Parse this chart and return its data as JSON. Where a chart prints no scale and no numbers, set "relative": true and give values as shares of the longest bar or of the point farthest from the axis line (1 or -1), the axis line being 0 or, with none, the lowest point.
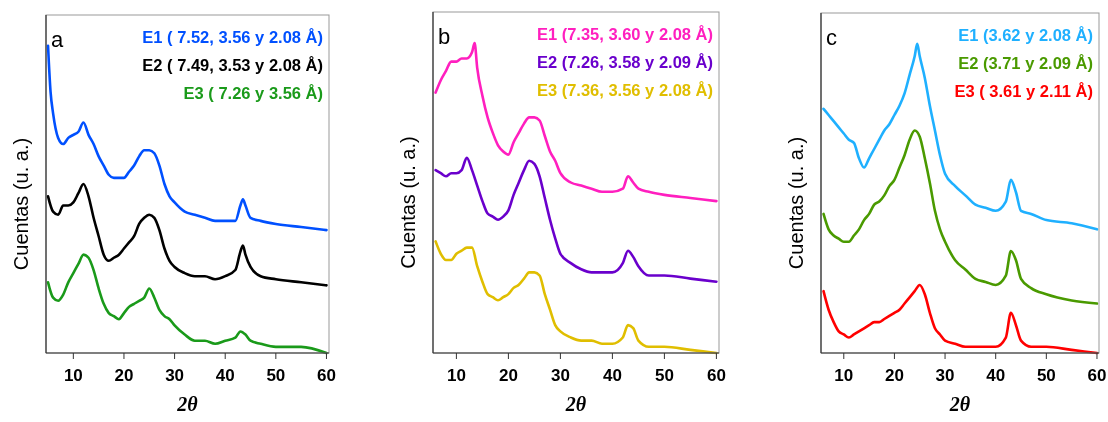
{
  "chart_data": [
    {
      "type": "line",
      "relative": true,
      "annotations": [
        "a"
      ],
      "xlabel": "2θ",
      "ylabel": "Cuentas (u. a.)",
      "xlim": [
        4.6,
        60.5
      ],
      "xticks": [
        10,
        20,
        30,
        40,
        50,
        60
      ],
      "tick_labels": "x",
      "legend": "top right",
      "grid": false,
      "series": [
        {
          "name": "E1 ( 7.52, 3.56 y 2.08 Å)",
          "color": "#0050ff",
          "x": [
            5,
            5.5,
            6,
            7,
            8,
            9,
            10,
            11,
            12,
            13,
            14,
            15,
            16,
            17,
            18,
            19,
            20,
            21,
            22,
            23,
            24,
            25,
            26,
            27,
            28,
            29,
            30,
            32,
            34,
            36,
            38,
            40,
            42,
            43,
            43.5,
            44,
            45,
            47,
            50,
            55,
            60
          ],
          "values": [
            1.0,
            0.85,
            0.78,
            0.7,
            0.68,
            0.7,
            0.71,
            0.72,
            0.75,
            0.71,
            0.68,
            0.64,
            0.61,
            0.58,
            0.57,
            0.57,
            0.57,
            0.59,
            0.61,
            0.64,
            0.66,
            0.66,
            0.65,
            0.61,
            0.55,
            0.51,
            0.49,
            0.46,
            0.45,
            0.44,
            0.43,
            0.43,
            0.43,
            0.48,
            0.5,
            0.48,
            0.44,
            0.43,
            0.42,
            0.41,
            0.4
          ]
        },
        {
          "name": "E2 ( 7.49, 3.53 y 2.08 Å)",
          "color": "#000000",
          "x": [
            5,
            6,
            7,
            8,
            9,
            10,
            11,
            12,
            13,
            14,
            15,
            16,
            17,
            18,
            19,
            20,
            21,
            22,
            23,
            24,
            25,
            26,
            27,
            28,
            29,
            30,
            32,
            34,
            36,
            38,
            40,
            42,
            43,
            43.5,
            44,
            45,
            47,
            50,
            55,
            60
          ],
          "values": [
            0.51,
            0.46,
            0.45,
            0.48,
            0.48,
            0.49,
            0.52,
            0.55,
            0.51,
            0.44,
            0.38,
            0.32,
            0.3,
            0.31,
            0.32,
            0.34,
            0.36,
            0.38,
            0.42,
            0.44,
            0.45,
            0.44,
            0.4,
            0.34,
            0.3,
            0.28,
            0.26,
            0.25,
            0.25,
            0.24,
            0.25,
            0.27,
            0.33,
            0.35,
            0.32,
            0.28,
            0.25,
            0.24,
            0.23,
            0.22
          ]
        },
        {
          "name": "E3 ( 7.26 y 3.56 Å)",
          "color": "#1a9a1a",
          "x": [
            5,
            6,
            7,
            8,
            9,
            10,
            11,
            12,
            13,
            14,
            15,
            16,
            17,
            18,
            19,
            20,
            21,
            22,
            23,
            24,
            25,
            26,
            27,
            28,
            29,
            30,
            32,
            34,
            36,
            38,
            40,
            42,
            43,
            44,
            45,
            47,
            50,
            55,
            60
          ],
          "values": [
            0.23,
            0.18,
            0.17,
            0.19,
            0.23,
            0.26,
            0.29,
            0.32,
            0.31,
            0.27,
            0.21,
            0.16,
            0.13,
            0.12,
            0.11,
            0.13,
            0.15,
            0.16,
            0.17,
            0.18,
            0.21,
            0.18,
            0.14,
            0.12,
            0.11,
            0.09,
            0.06,
            0.04,
            0.04,
            0.03,
            0.04,
            0.05,
            0.07,
            0.06,
            0.04,
            0.03,
            0.02,
            0.02,
            0
          ]
        }
      ]
    },
    {
      "type": "line",
      "relative": true,
      "annotations": [
        "b"
      ],
      "xlabel": "2θ",
      "ylabel": "Cuentas (u. a.)",
      "xlim": [
        5.5,
        60.5
      ],
      "xticks": [
        10,
        20,
        30,
        40,
        50,
        60
      ],
      "tick_labels": "x",
      "legend": "top right",
      "grid": false,
      "series": [
        {
          "name": "E1 (7.35, 3.60 y 2.08 Å)",
          "color": "#ff1fbf",
          "x": [
            6,
            7,
            8,
            9,
            10,
            11,
            12,
            13,
            13.5,
            14,
            15,
            16,
            17,
            18,
            19,
            20,
            21,
            22,
            23,
            24,
            25,
            26,
            27,
            28,
            29,
            30,
            32,
            34,
            36,
            38,
            40,
            42,
            43,
            44,
            45,
            47,
            50,
            55,
            60
          ],
          "values": [
            0.84,
            0.88,
            0.91,
            0.94,
            0.94,
            0.95,
            0.95,
            0.97,
            1.0,
            0.92,
            0.83,
            0.76,
            0.71,
            0.67,
            0.65,
            0.64,
            0.68,
            0.71,
            0.74,
            0.76,
            0.76,
            0.75,
            0.7,
            0.65,
            0.62,
            0.58,
            0.55,
            0.54,
            0.53,
            0.52,
            0.52,
            0.53,
            0.57,
            0.55,
            0.53,
            0.52,
            0.51,
            0.5,
            0.49
          ]
        },
        {
          "name": "E2 (7.26, 3.58 y 2.09 Å)",
          "color": "#6a00cc",
          "x": [
            6,
            7,
            8,
            9,
            10,
            11,
            12,
            13,
            14,
            15,
            16,
            17,
            18,
            19,
            20,
            21,
            22,
            23,
            24,
            25,
            26,
            27,
            28,
            29,
            30,
            32,
            34,
            36,
            38,
            40,
            42,
            43,
            44,
            45,
            47,
            50,
            55,
            60
          ],
          "values": [
            0.59,
            0.58,
            0.57,
            0.58,
            0.58,
            0.59,
            0.63,
            0.59,
            0.54,
            0.49,
            0.45,
            0.44,
            0.43,
            0.44,
            0.46,
            0.51,
            0.55,
            0.59,
            0.62,
            0.61,
            0.57,
            0.5,
            0.43,
            0.37,
            0.32,
            0.29,
            0.27,
            0.26,
            0.26,
            0.26,
            0.29,
            0.33,
            0.31,
            0.28,
            0.25,
            0.25,
            0.24,
            0.23
          ]
        },
        {
          "name": "E3 (7.36, 3.56 y 2.08 Å)",
          "color": "#e0be00",
          "x": [
            6,
            7,
            8,
            9,
            10,
            11,
            12,
            13,
            14,
            15,
            16,
            17,
            18,
            19,
            20,
            21,
            22,
            23,
            24,
            25,
            26,
            27,
            28,
            29,
            30,
            32,
            34,
            36,
            38,
            40,
            42,
            43,
            44,
            45,
            47,
            50,
            55,
            60
          ],
          "values": [
            0.36,
            0.32,
            0.3,
            0.3,
            0.32,
            0.33,
            0.34,
            0.34,
            0.28,
            0.23,
            0.19,
            0.18,
            0.17,
            0.18,
            0.19,
            0.21,
            0.22,
            0.24,
            0.26,
            0.26,
            0.25,
            0.19,
            0.14,
            0.09,
            0.07,
            0.05,
            0.04,
            0.04,
            0.03,
            0.03,
            0.05,
            0.09,
            0.08,
            0.04,
            0.02,
            0.02,
            0.01,
            0
          ]
        }
      ]
    },
    {
      "type": "line",
      "relative": true,
      "annotations": [
        "c"
      ],
      "xlabel": "2θ",
      "ylabel": "Cuentas (u. a.)",
      "xlim": [
        5.5,
        60.4
      ],
      "xticks": [
        10,
        20,
        30,
        40,
        50,
        60
      ],
      "tick_labels": "x",
      "legend": "top right",
      "grid": false,
      "series": [
        {
          "name": "E1 (3.62 y 2.08 Å)",
          "color": "#1fb0ff",
          "x": [
            6,
            7,
            8,
            9,
            10,
            11,
            12,
            13,
            14,
            15,
            16,
            17,
            18,
            19,
            20,
            21,
            22,
            23,
            24,
            24.5,
            25,
            26,
            27,
            28,
            29,
            30,
            32,
            34,
            36,
            38,
            40,
            42,
            43,
            44,
            45,
            47,
            50,
            55,
            60
          ],
          "values": [
            0.79,
            0.77,
            0.75,
            0.73,
            0.71,
            0.69,
            0.68,
            0.63,
            0.6,
            0.63,
            0.66,
            0.69,
            0.72,
            0.74,
            0.77,
            0.8,
            0.84,
            0.9,
            0.96,
            1.0,
            0.96,
            0.89,
            0.8,
            0.72,
            0.64,
            0.58,
            0.54,
            0.51,
            0.48,
            0.47,
            0.46,
            0.49,
            0.56,
            0.52,
            0.46,
            0.45,
            0.43,
            0.42,
            0.4
          ]
        },
        {
          "name": "E2 (3.71 y 2.09 Å)",
          "color": "#4a9a00",
          "x": [
            6,
            7,
            8,
            9,
            10,
            11,
            12,
            13,
            14,
            15,
            16,
            17,
            18,
            19,
            20,
            21,
            22,
            23,
            24,
            25,
            26,
            27,
            28,
            29,
            30,
            32,
            34,
            36,
            38,
            40,
            42,
            43,
            44,
            45,
            47,
            50,
            55,
            60
          ],
          "values": [
            0.45,
            0.4,
            0.38,
            0.37,
            0.36,
            0.36,
            0.38,
            0.4,
            0.43,
            0.45,
            0.48,
            0.49,
            0.51,
            0.54,
            0.56,
            0.6,
            0.64,
            0.69,
            0.72,
            0.7,
            0.63,
            0.55,
            0.46,
            0.4,
            0.36,
            0.3,
            0.27,
            0.24,
            0.23,
            0.22,
            0.25,
            0.33,
            0.3,
            0.24,
            0.21,
            0.19,
            0.17,
            0.16
          ]
        },
        {
          "name": "E3 ( 3.61 y 2.11 Å)",
          "color": "#ff0000",
          "x": [
            6,
            7,
            8,
            9,
            10,
            11,
            12,
            13,
            14,
            15,
            16,
            17,
            18,
            19,
            20,
            21,
            22,
            23,
            24,
            25,
            26,
            27,
            28,
            29,
            30,
            32,
            34,
            36,
            38,
            40,
            42,
            43,
            44,
            45,
            47,
            50,
            55,
            60
          ],
          "values": [
            0.2,
            0.14,
            0.1,
            0.07,
            0.06,
            0.05,
            0.06,
            0.07,
            0.08,
            0.09,
            0.1,
            0.1,
            0.11,
            0.12,
            0.13,
            0.14,
            0.16,
            0.18,
            0.2,
            0.22,
            0.19,
            0.13,
            0.08,
            0.06,
            0.04,
            0.03,
            0.02,
            0.02,
            0.02,
            0.02,
            0.05,
            0.13,
            0.09,
            0.04,
            0.02,
            0.02,
            0.01,
            0
          ]
        }
      ]
    }
  ]
}
